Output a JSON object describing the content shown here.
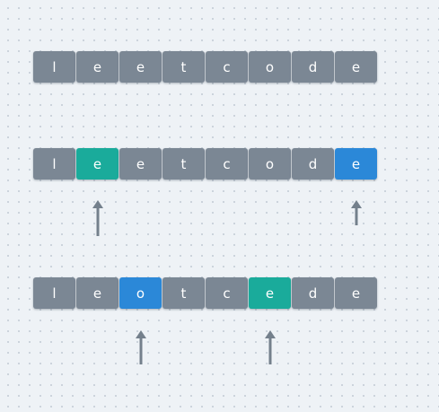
{
  "colors": {
    "default": "#7b8794",
    "teal": "#1aab9b",
    "blue": "#2b88d8",
    "arrow": "#74808c"
  },
  "rows": [
    {
      "cells": [
        {
          "char": "l",
          "state": "default"
        },
        {
          "char": "e",
          "state": "default"
        },
        {
          "char": "e",
          "state": "default"
        },
        {
          "char": "t",
          "state": "default"
        },
        {
          "char": "c",
          "state": "default"
        },
        {
          "char": "o",
          "state": "default"
        },
        {
          "char": "d",
          "state": "default"
        },
        {
          "char": "e",
          "state": "default"
        }
      ],
      "pointers": []
    },
    {
      "cells": [
        {
          "char": "l",
          "state": "default"
        },
        {
          "char": "e",
          "state": "teal"
        },
        {
          "char": "e",
          "state": "default"
        },
        {
          "char": "t",
          "state": "default"
        },
        {
          "char": "c",
          "state": "default"
        },
        {
          "char": "o",
          "state": "default"
        },
        {
          "char": "d",
          "state": "default"
        },
        {
          "char": "e",
          "state": "blue"
        }
      ],
      "pointers": [
        1,
        7
      ]
    },
    {
      "cells": [
        {
          "char": "l",
          "state": "default"
        },
        {
          "char": "e",
          "state": "default"
        },
        {
          "char": "o",
          "state": "blue"
        },
        {
          "char": "t",
          "state": "default"
        },
        {
          "char": "c",
          "state": "default"
        },
        {
          "char": "e",
          "state": "teal"
        },
        {
          "char": "d",
          "state": "default"
        },
        {
          "char": "e",
          "state": "default"
        }
      ],
      "pointers": [
        2,
        5
      ]
    }
  ]
}
